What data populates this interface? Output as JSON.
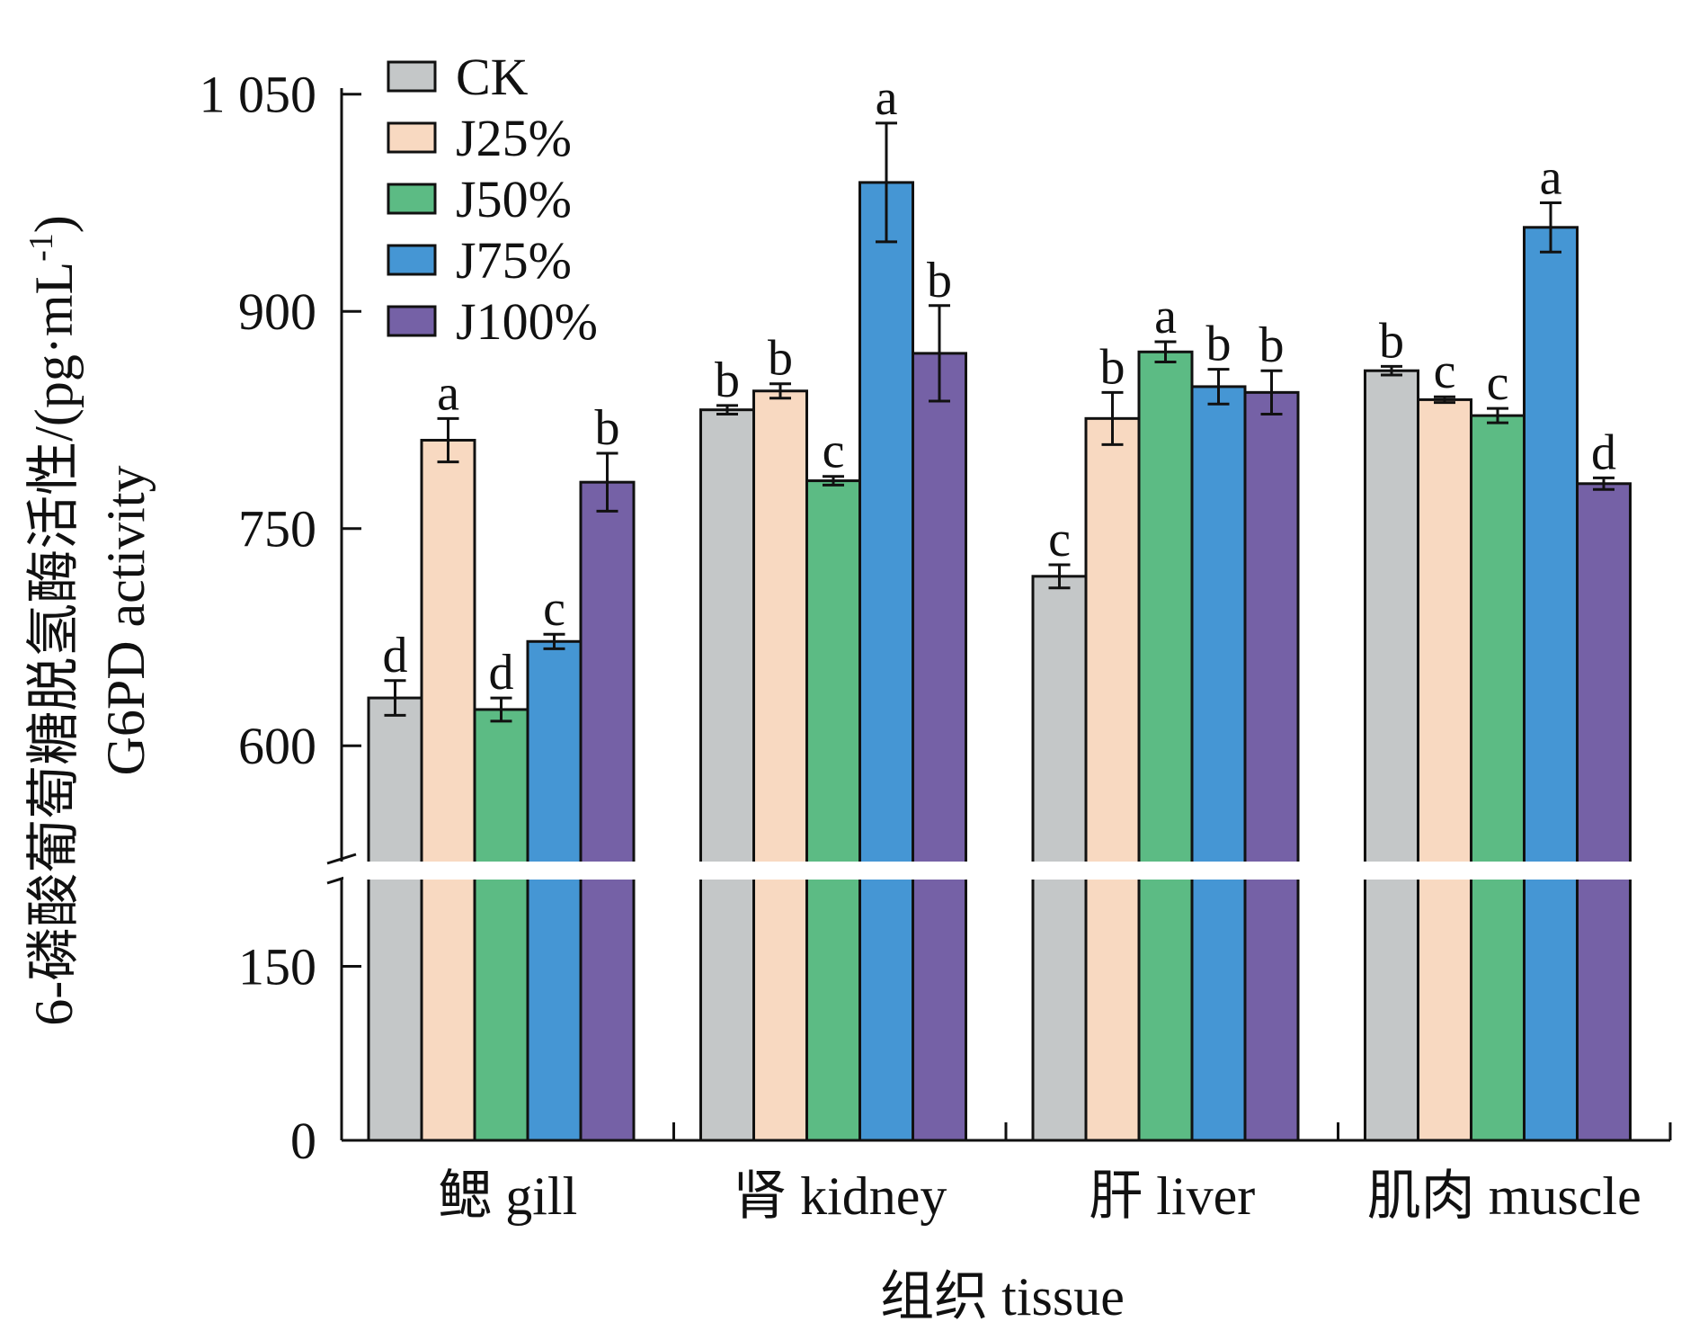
{
  "chart_data": {
    "type": "bar",
    "title": "",
    "xlabel": "组织 tissue",
    "ylabel_line1": "6-磷酸葡萄糖脱氢酶活性/(pg·mL",
    "ylabel_sup": "-1",
    "ylabel_close": ")",
    "ylabel_line2": "G6PD activity",
    "categories": [
      "鳃 gill",
      "肾 kidney",
      "肝 liver",
      "肌肉 muscle"
    ],
    "y_break": [
      170,
      520
    ],
    "ylim": [
      0,
      1050
    ],
    "yticks": [
      {
        "value": 0,
        "label": "0"
      },
      {
        "value": 150,
        "label": "150"
      },
      {
        "value": 600,
        "label": "600"
      },
      {
        "value": 750,
        "label": "750"
      },
      {
        "value": 900,
        "label": "900"
      },
      {
        "value": 1050,
        "label": "1 050"
      }
    ],
    "legend_position": "top-left",
    "series": [
      {
        "name": "CK",
        "color": "#c4c7c8",
        "values": [
          633,
          832,
          717,
          859
        ],
        "errors": [
          12,
          3,
          8,
          3
        ],
        "letters": [
          "d",
          "b",
          "c",
          "b"
        ]
      },
      {
        "name": "J25%",
        "color": "#f8d9c1",
        "values": [
          811,
          845,
          826,
          839
        ],
        "errors": [
          15,
          5,
          18,
          2
        ],
        "letters": [
          "a",
          "b",
          "b",
          "c"
        ]
      },
      {
        "name": "J50%",
        "color": "#5cbb84",
        "values": [
          625,
          783,
          872,
          828
        ],
        "errors": [
          8,
          3,
          7,
          5
        ],
        "letters": [
          "d",
          "c",
          "a",
          "c"
        ]
      },
      {
        "name": "J75%",
        "color": "#4596d4",
        "values": [
          672,
          989,
          848,
          958
        ],
        "errors": [
          5,
          41,
          12,
          17
        ],
        "letters": [
          "c",
          "a",
          "b",
          "a"
        ]
      },
      {
        "name": "J100%",
        "color": "#7561a6",
        "values": [
          782,
          871,
          844,
          781
        ],
        "errors": [
          20,
          33,
          15,
          4
        ],
        "letters": [
          "b",
          "b",
          "b",
          "d"
        ]
      }
    ]
  }
}
